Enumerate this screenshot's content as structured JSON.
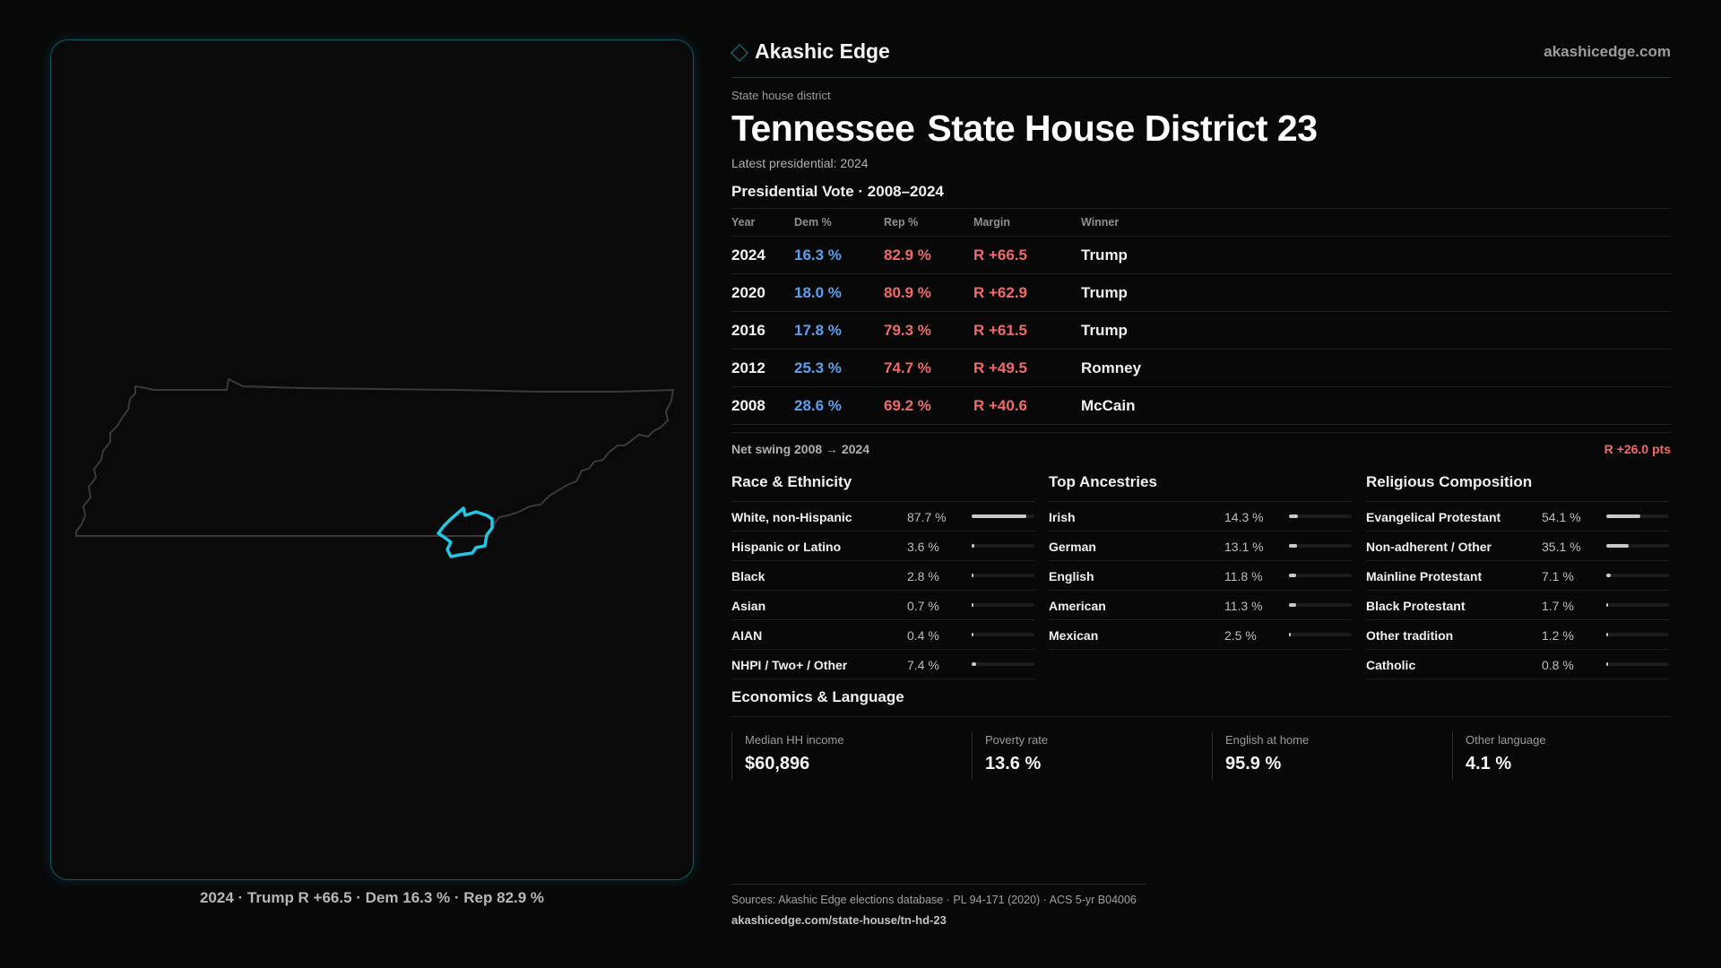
{
  "brand": {
    "name": "Akashic Edge",
    "url": "akashicedge.com",
    "accent": "#1a7f8a"
  },
  "eyebrow": "State house district",
  "title": {
    "state": "Tennessee",
    "district": "State House District 23"
  },
  "latest": "Latest presidential: 2024",
  "presidential": {
    "title": "Presidential Vote · 2008–2024",
    "headers": [
      "Year",
      "Dem %",
      "Rep %",
      "Margin",
      "Winner"
    ],
    "rows": [
      {
        "year": "2024",
        "dem": "16.3 %",
        "rep": "82.9 %",
        "margin": "R +66.5",
        "winner": "Trump"
      },
      {
        "year": "2020",
        "dem": "18.0 %",
        "rep": "80.9 %",
        "margin": "R +62.9",
        "winner": "Trump"
      },
      {
        "year": "2016",
        "dem": "17.8 %",
        "rep": "79.3 %",
        "margin": "R +61.5",
        "winner": "Trump"
      },
      {
        "year": "2012",
        "dem": "25.3 %",
        "rep": "74.7 %",
        "margin": "R +49.5",
        "winner": "Romney"
      },
      {
        "year": "2008",
        "dem": "28.6 %",
        "rep": "69.2 %",
        "margin": "R +40.6",
        "winner": "McCain"
      }
    ]
  },
  "swing": {
    "label": "Net swing 2008 → 2024",
    "value": "R +26.0 pts"
  },
  "race": {
    "title": "Race & Ethnicity",
    "rows": [
      {
        "name": "White, non-Hispanic",
        "pct": "87.7 %",
        "value": 87.7
      },
      {
        "name": "Hispanic or Latino",
        "pct": "3.6 %",
        "value": 3.6
      },
      {
        "name": "Black",
        "pct": "2.8 %",
        "value": 2.8
      },
      {
        "name": "Asian",
        "pct": "0.7 %",
        "value": 0.7
      },
      {
        "name": "AIAN",
        "pct": "0.4 %",
        "value": 0.4
      },
      {
        "name": "NHPI / Two+ / Other",
        "pct": "7.4 %",
        "value": 7.4
      }
    ]
  },
  "ancestry": {
    "title": "Top Ancestries",
    "rows": [
      {
        "name": "Irish",
        "pct": "14.3 %",
        "value": 14.3
      },
      {
        "name": "German",
        "pct": "13.1 %",
        "value": 13.1
      },
      {
        "name": "English",
        "pct": "11.8 %",
        "value": 11.8
      },
      {
        "name": "American",
        "pct": "11.3 %",
        "value": 11.3
      },
      {
        "name": "Mexican",
        "pct": "2.5 %",
        "value": 2.5
      }
    ]
  },
  "religion": {
    "title": "Religious Composition",
    "rows": [
      {
        "name": "Evangelical Protestant",
        "pct": "54.1 %",
        "value": 54.1
      },
      {
        "name": "Non-adherent / Other",
        "pct": "35.1 %",
        "value": 35.1
      },
      {
        "name": "Mainline Protestant",
        "pct": "7.1 %",
        "value": 7.1
      },
      {
        "name": "Black Protestant",
        "pct": "1.7 %",
        "value": 1.7
      },
      {
        "name": "Other tradition",
        "pct": "1.2 %",
        "value": 1.2
      },
      {
        "name": "Catholic",
        "pct": "0.8 %",
        "value": 0.8
      }
    ]
  },
  "economics": {
    "title": "Economics & Language",
    "stats": [
      {
        "label": "Median HH income",
        "value": "$60,896"
      },
      {
        "label": "Poverty rate",
        "value": "13.6 %"
      },
      {
        "label": "English at home",
        "value": "95.9 %"
      },
      {
        "label": "Other language",
        "value": "4.1 %"
      }
    ]
  },
  "map": {
    "caption": "2024 · Trump R +66.5 · Dem 16.3 % · Rep 82.9 %",
    "highlight": "#22c8e6"
  },
  "sources": {
    "line1": "Sources: Akashic Edge elections database · PL 94-171 (2020) · ACS 5-yr B04006",
    "line2": "akashicedge.com/state-house/tn-hd-23"
  },
  "colors": {
    "dem": "#5aa0f0",
    "rep": "#f06a68"
  }
}
